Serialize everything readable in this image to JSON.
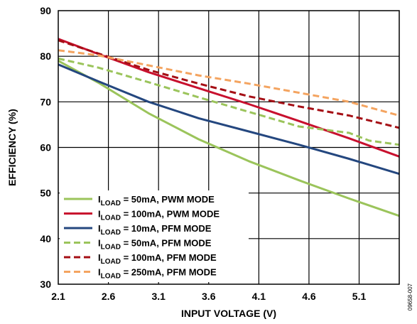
{
  "chart_data": {
    "type": "line",
    "xlabel": "INPUT VOLTAGE (V)",
    "ylabel": "EFFICIENCY (%)",
    "xlim": [
      2.1,
      5.5
    ],
    "ylim": [
      30,
      90
    ],
    "xticks": [
      2.1,
      2.6,
      3.1,
      3.6,
      4.1,
      4.6,
      5.1
    ],
    "xtick_labels": [
      "2.1",
      "2.6",
      "3.1",
      "3.6",
      "4.1",
      "4.6",
      "5.1"
    ],
    "yticks": [
      30,
      40,
      50,
      60,
      70,
      80,
      90
    ],
    "ytick_labels": [
      "30",
      "40",
      "50",
      "60",
      "70",
      "80",
      "90"
    ],
    "grid": true,
    "legend_position": "bottom-left",
    "figure_id": "09658-007",
    "series": [
      {
        "name": "= 50mA, PWM MODE",
        "name_prefix": "I",
        "name_sub": "LOAD",
        "color": "#9bc45b",
        "dash": "solid",
        "x": [
          2.1,
          2.5,
          3.0,
          3.5,
          4.0,
          4.5,
          5.0,
          5.5
        ],
        "y": [
          79,
          74.2,
          67.5,
          61.8,
          57.0,
          52.8,
          48.8,
          45.0
        ]
      },
      {
        "name": "= 100mA, PWM MODE",
        "name_prefix": "I",
        "name_sub": "LOAD",
        "color": "#c8102e",
        "dash": "solid",
        "x": [
          2.1,
          2.5,
          3.0,
          3.5,
          4.0,
          4.5,
          5.0,
          5.5
        ],
        "y": [
          83.8,
          80.5,
          76.5,
          73.0,
          69.5,
          65.8,
          62.0,
          58.0
        ]
      },
      {
        "name": "= 10mA, PFM MODE",
        "name_prefix": "I",
        "name_sub": "LOAD",
        "color": "#24477f",
        "dash": "solid",
        "x": [
          2.1,
          2.5,
          3.0,
          3.5,
          4.0,
          4.5,
          5.0,
          5.5
        ],
        "y": [
          78.2,
          74.5,
          70.0,
          66.4,
          63.5,
          60.6,
          57.5,
          54.2
        ]
      },
      {
        "name": "= 50mA, PFM MODE",
        "name_prefix": "I",
        "name_sub": "LOAD",
        "color": "#9bc45b",
        "dash": "dashed",
        "x": [
          2.1,
          2.5,
          3.0,
          3.5,
          4.0,
          4.5,
          5.0,
          5.2,
          5.5
        ],
        "y": [
          79.5,
          77.5,
          74.3,
          71.0,
          67.8,
          64.6,
          63.2,
          61.5,
          60.6
        ]
      },
      {
        "name": "= 100mA, PFM MODE",
        "name_prefix": "I",
        "name_sub": "LOAD",
        "color": "#a50f15",
        "dash": "dashed",
        "x": [
          2.1,
          2.5,
          3.0,
          3.5,
          4.0,
          4.5,
          5.0,
          5.5
        ],
        "y": [
          83.5,
          80.6,
          77.0,
          74.0,
          71.2,
          69.0,
          67.0,
          64.3
        ]
      },
      {
        "name": "= 250mA, PFM MODE",
        "name_prefix": "I",
        "name_sub": "LOAD",
        "color": "#f4a460",
        "dash": "dashed",
        "x": [
          2.1,
          2.5,
          3.0,
          3.5,
          4.0,
          4.5,
          5.0,
          5.5
        ],
        "y": [
          81.3,
          80.2,
          78.0,
          75.8,
          74.0,
          72.0,
          70.0,
          67.0
        ]
      }
    ]
  }
}
